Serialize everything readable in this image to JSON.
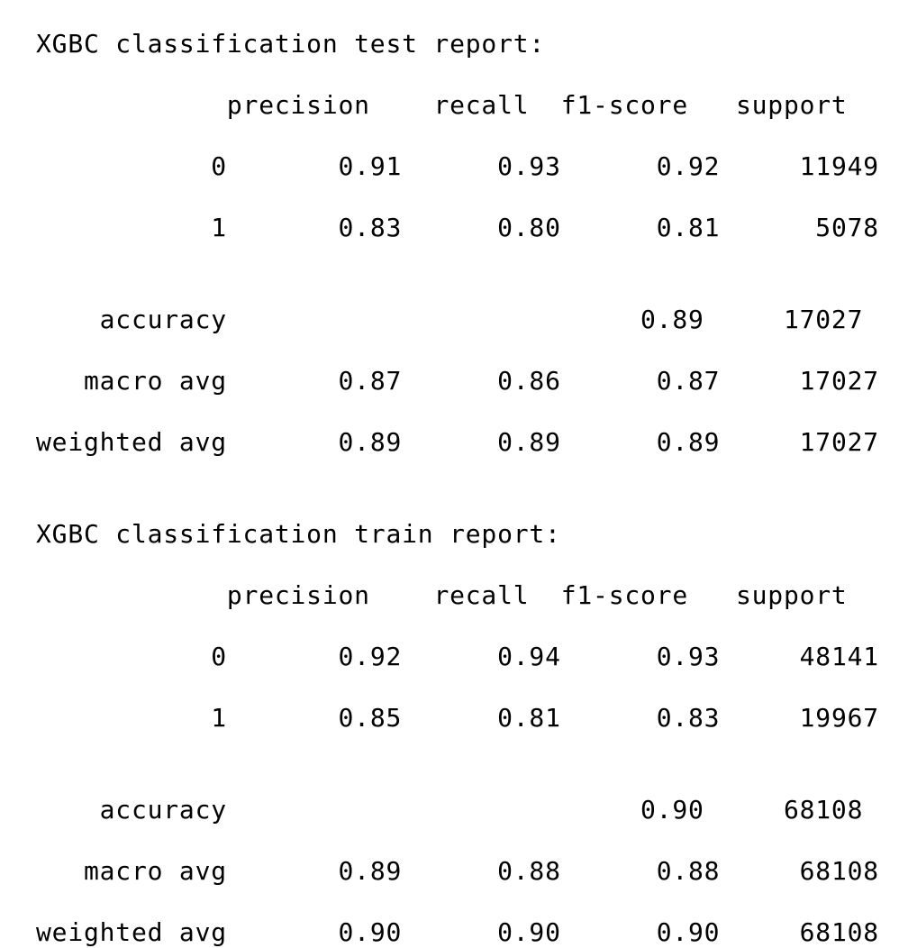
{
  "reports": [
    {
      "title": "XGBC classification test report:",
      "columns": [
        "precision",
        "recall",
        "f1-score",
        "support"
      ],
      "rows": [
        {
          "label": "0",
          "precision": "0.91",
          "recall": "0.93",
          "f1": "0.92",
          "support": "11949"
        },
        {
          "label": "1",
          "precision": "0.83",
          "recall": "0.80",
          "f1": "0.81",
          "support": "5078"
        }
      ],
      "summary": [
        {
          "label": "accuracy",
          "precision": "",
          "recall": "",
          "f1": "0.89",
          "support": "17027"
        },
        {
          "label": "macro avg",
          "precision": "0.87",
          "recall": "0.86",
          "f1": "0.87",
          "support": "17027"
        },
        {
          "label": "weighted avg",
          "precision": "0.89",
          "recall": "0.89",
          "f1": "0.89",
          "support": "17027"
        }
      ]
    },
    {
      "title": "XGBC classification train report:",
      "columns": [
        "precision",
        "recall",
        "f1-score",
        "support"
      ],
      "rows": [
        {
          "label": "0",
          "precision": "0.92",
          "recall": "0.94",
          "f1": "0.93",
          "support": "48141"
        },
        {
          "label": "1",
          "precision": "0.85",
          "recall": "0.81",
          "f1": "0.83",
          "support": "19967"
        }
      ],
      "summary": [
        {
          "label": "accuracy",
          "precision": "",
          "recall": "",
          "f1": "0.90",
          "support": "68108"
        },
        {
          "label": "macro avg",
          "precision": "0.89",
          "recall": "0.88",
          "f1": "0.88",
          "support": "68108"
        },
        {
          "label": "weighted avg",
          "precision": "0.90",
          "recall": "0.90",
          "f1": "0.90",
          "support": "68108"
        }
      ]
    }
  ]
}
